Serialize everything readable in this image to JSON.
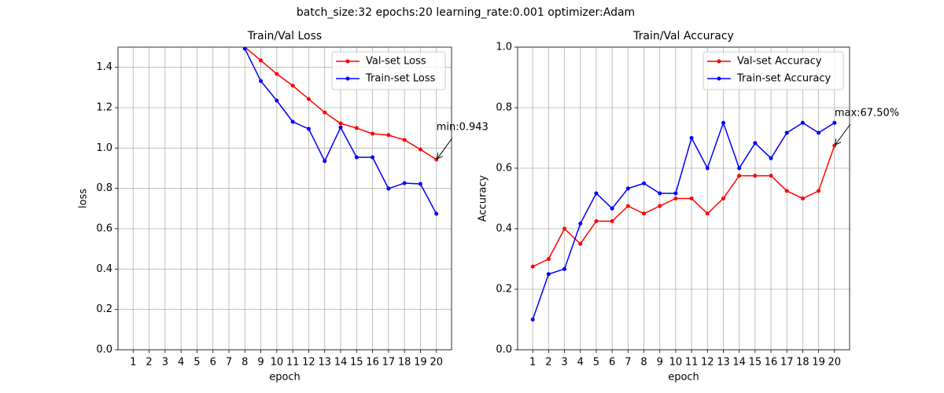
{
  "title": "batch_size:32   epochs:20   learning_rate:0.001   optimizer:Adam",
  "chart_data": [
    {
      "type": "line",
      "title": "Train/Val Loss",
      "x_label": "epoch",
      "y_label": "loss",
      "x": [
        1,
        2,
        3,
        4,
        5,
        6,
        7,
        8,
        9,
        10,
        11,
        12,
        13,
        14,
        15,
        16,
        17,
        18,
        19,
        20
      ],
      "xlim": [
        0.05,
        20.95
      ],
      "xticks": [
        1,
        2,
        3,
        4,
        5,
        6,
        7,
        8,
        9,
        10,
        11,
        12,
        13,
        14,
        15,
        16,
        17,
        18,
        19,
        20
      ],
      "ylim": [
        0,
        1.5
      ],
      "yticks": [
        {
          "value": 0,
          "label": "0.0"
        },
        0.2,
        0.4,
        0.6,
        0.8,
        {
          "value": 1,
          "label": "1.0"
        },
        1.2,
        1.4
      ],
      "grid": true,
      "legend": "upper right",
      "series": [
        {
          "name": "Val-set Loss",
          "color": "#ff0000",
          "values": [
            null,
            null,
            null,
            null,
            null,
            null,
            null,
            1.5,
            1.434,
            1.367,
            1.309,
            1.243,
            1.176,
            1.122,
            1.099,
            1.071,
            1.064,
            1.04,
            0.993,
            0.943
          ]
        },
        {
          "name": "Train-set Loss",
          "color": "#0000ff",
          "values": [
            null,
            null,
            null,
            null,
            null,
            null,
            null,
            1.492,
            1.332,
            1.235,
            1.13,
            1.095,
            0.935,
            1.102,
            0.954,
            0.954,
            0.799,
            0.826,
            0.822,
            0.674
          ]
        }
      ],
      "annotations": [
        {
          "text": "min:0.943",
          "x": 20,
          "y": 0.943
        }
      ]
    },
    {
      "type": "line",
      "title": "Train/Val Accuracy",
      "x_label": "epoch",
      "y_label": "Accuracy",
      "x": [
        1,
        2,
        3,
        4,
        5,
        6,
        7,
        8,
        9,
        10,
        11,
        12,
        13,
        14,
        15,
        16,
        17,
        18,
        19,
        20
      ],
      "xlim": [
        0.05,
        20.95
      ],
      "xticks": [
        1,
        2,
        3,
        4,
        5,
        6,
        7,
        8,
        9,
        10,
        11,
        12,
        13,
        14,
        15,
        16,
        17,
        18,
        19,
        20
      ],
      "ylim": [
        0,
        1
      ],
      "yticks": [
        {
          "value": 0,
          "label": "0.0"
        },
        0.2,
        0.4,
        0.6,
        0.8,
        {
          "value": 1,
          "label": "1.0"
        }
      ],
      "grid": true,
      "legend": "upper right",
      "series": [
        {
          "name": "Val-set Accuracy",
          "color": "#ff0000",
          "values": [
            0.275,
            0.3,
            0.4,
            0.35,
            0.425,
            0.425,
            0.475,
            0.45,
            0.475,
            0.5,
            0.5,
            0.45,
            0.5,
            0.575,
            0.575,
            0.575,
            0.525,
            0.5,
            0.525,
            0.675
          ]
        },
        {
          "name": "Train-set Accuracy",
          "color": "#0000ff",
          "values": [
            0.1,
            0.25,
            0.267,
            0.417,
            0.517,
            0.467,
            0.533,
            0.55,
            0.517,
            0.517,
            0.7,
            0.6,
            0.75,
            0.6,
            0.683,
            0.633,
            0.717,
            0.75,
            0.717,
            0.75
          ]
        }
      ],
      "annotations": [
        {
          "text": "max:67.50%",
          "x": 20,
          "y": 0.675
        }
      ]
    }
  ]
}
